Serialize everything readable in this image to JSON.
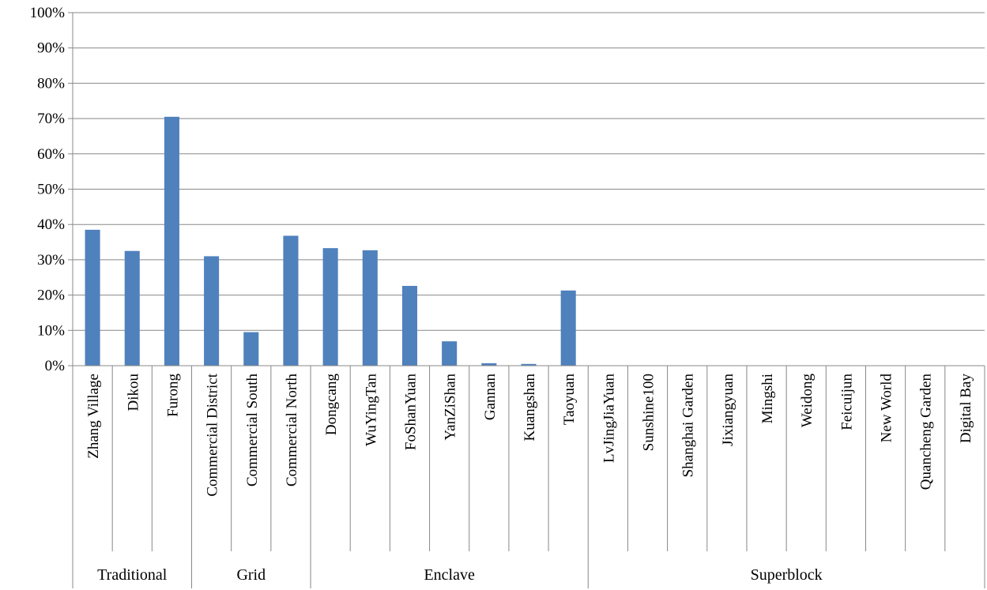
{
  "chart_data": {
    "type": "bar",
    "title": "",
    "xlabel": "",
    "ylabel": "",
    "ylim": [
      0,
      100
    ],
    "y_ticks": [
      "0%",
      "10%",
      "20%",
      "30%",
      "40%",
      "50%",
      "60%",
      "70%",
      "80%",
      "90%",
      "100%"
    ],
    "grid": true,
    "legend": "none",
    "bar_color": "#4F81BD",
    "categories": [
      "Zhang Village",
      "Dikou",
      "Furong",
      "Commercial District",
      "Commercial South",
      "Commercial North",
      "Dongcang",
      "WuYingTan",
      "FoShanYuan",
      "YanZiShan",
      "Gannan",
      "Kuangshan",
      "Taoyuan",
      "LvJingJiaYuan",
      "Sunshine100",
      "Shanghai Garden",
      "Jixiangyuan",
      "Mingshi",
      "Weidong",
      "Feicuijun",
      "New World",
      "Quancheng Garden",
      "Digital Bay"
    ],
    "values": [
      38.5,
      32.5,
      70.5,
      31.0,
      9.5,
      36.8,
      33.3,
      32.7,
      22.6,
      6.9,
      0.7,
      0.5,
      21.3,
      0,
      0,
      0,
      0,
      0,
      0,
      0,
      0,
      0,
      0
    ],
    "groups": [
      {
        "label": "Traditional",
        "count": 3
      },
      {
        "label": "Grid",
        "count": 3
      },
      {
        "label": "Enclave",
        "count": 7
      },
      {
        "label": "Superblock",
        "count": 10
      }
    ]
  }
}
